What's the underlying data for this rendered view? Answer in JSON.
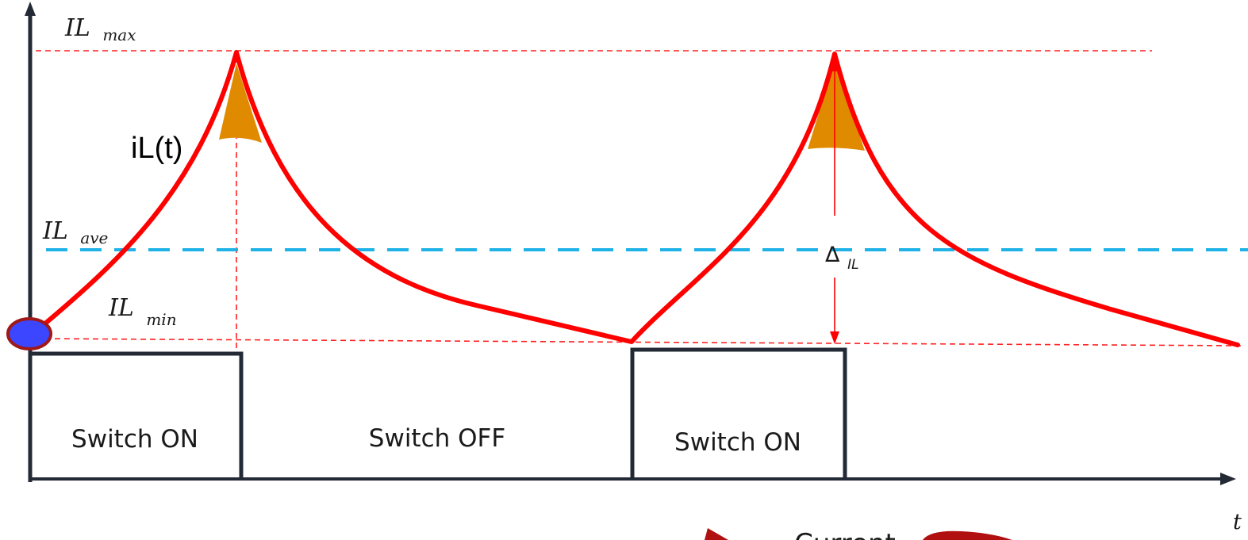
{
  "labels": {
    "il_max_main": "IL",
    "il_max_sub": "max",
    "il_ave_main": "IL",
    "il_ave_sub": "ave",
    "il_min_main": "IL",
    "il_min_sub": "min",
    "il_t": "iL(t)",
    "delta_main": "Δ",
    "delta_sub": "IL",
    "time_axis": "t",
    "current_partial": "Current"
  },
  "phases": [
    {
      "label": "Switch ON"
    },
    {
      "label": "Switch OFF"
    },
    {
      "label": "Switch ON"
    }
  ],
  "colors": {
    "axis": "#232a35",
    "current_curve": "#ff0000",
    "reference_dashed": "#ff2020",
    "average_dashed": "#1fb2e6",
    "ripple_fill": "#e08a00",
    "start_marker_fill": "#3c46ff",
    "start_marker_stroke": "#a01818",
    "switch_box": "#232a35",
    "partial_arrow": "#b01010"
  }
}
